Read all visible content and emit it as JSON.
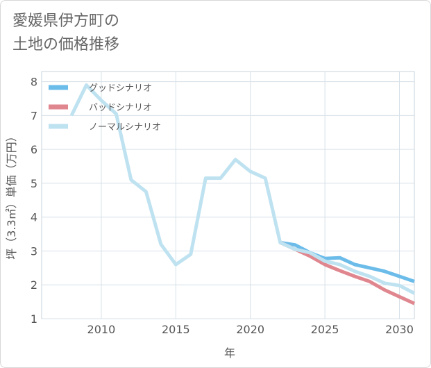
{
  "title_line1": "愛媛県伊方町の",
  "title_line2": "土地の価格推移",
  "colors": {
    "good": "#6cbcea",
    "bad": "#e0868f",
    "normal": "#bfe2f1",
    "grid": "#d6e0e8",
    "text": "#555555"
  },
  "chart_data": {
    "type": "line",
    "title": "愛媛県伊方町の土地の価格推移",
    "xlabel": "年",
    "ylabel": "坪（3.3㎡）単価（万円）",
    "xlim": [
      2006,
      2031
    ],
    "ylim": [
      1,
      8.3
    ],
    "xticks": [
      "2010",
      "2015",
      "2020",
      "2025",
      "2030"
    ],
    "yticks": [
      "1",
      "2",
      "3",
      "4",
      "5",
      "6",
      "7",
      "8"
    ],
    "legend_position": "top-left",
    "series": [
      {
        "name": "グッドシナリオ",
        "x": [
          2022,
          2023,
          2024,
          2025,
          2026,
          2027,
          2028,
          2029,
          2030,
          2031
        ],
        "values": [
          3.25,
          3.18,
          2.95,
          2.78,
          2.8,
          2.6,
          2.5,
          2.4,
          2.25,
          2.1
        ]
      },
      {
        "name": "バッドシナリオ",
        "x": [
          2022,
          2023,
          2024,
          2025,
          2026,
          2027,
          2028,
          2029,
          2030,
          2031
        ],
        "values": [
          3.25,
          3.05,
          2.85,
          2.6,
          2.42,
          2.25,
          2.1,
          1.85,
          1.65,
          1.45
        ]
      },
      {
        "name": "ノーマルシナリオ",
        "x": [
          2008,
          2009,
          2010,
          2011,
          2012,
          2013,
          2014,
          2015,
          2016,
          2017,
          2018,
          2019,
          2020,
          2021,
          2022,
          2023,
          2024,
          2025,
          2026,
          2027,
          2028,
          2029,
          2030,
          2031
        ],
        "values": [
          7.0,
          7.9,
          7.45,
          7.05,
          5.1,
          4.75,
          3.2,
          2.6,
          2.9,
          5.15,
          5.15,
          5.7,
          5.35,
          5.15,
          3.25,
          3.05,
          2.95,
          2.7,
          2.6,
          2.4,
          2.25,
          2.05,
          1.98,
          1.75
        ]
      }
    ]
  }
}
